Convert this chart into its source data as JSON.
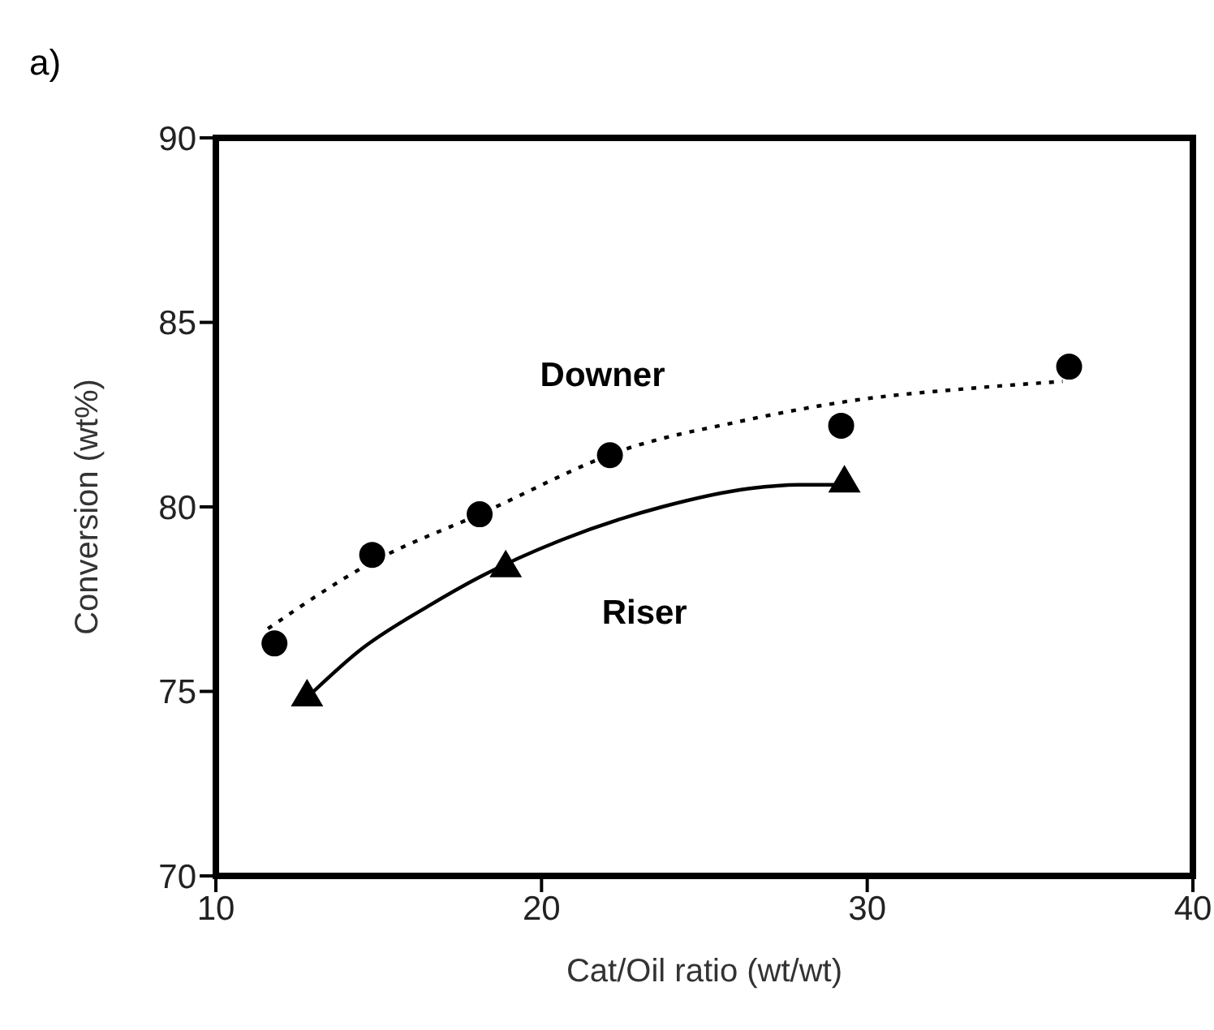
{
  "chart_data": {
    "type": "scatter",
    "title": "a)",
    "xlabel": "Cat/Oil ratio (wt/wt)",
    "ylabel": "Conversion  (wt%)",
    "xlim": [
      10,
      40
    ],
    "xticks": [
      10,
      20,
      30,
      40
    ],
    "ylim": [
      70,
      90
    ],
    "yticks": [
      70,
      75,
      80,
      85,
      90
    ],
    "series": [
      {
        "name": "Downer",
        "marker": "circle",
        "color": "#000000",
        "x": [
          11.8,
          14.8,
          18.1,
          22.1,
          29.2,
          36.2
        ],
        "values": [
          76.3,
          78.7,
          79.8,
          81.4,
          82.2,
          83.8
        ]
      },
      {
        "type": "line",
        "marker": "none",
        "line_style": "dotted",
        "color": "#000000",
        "x": [
          11.6,
          14.8,
          18.1,
          22.7,
          26.0,
          29.7,
          33.0,
          36.0
        ],
        "values": [
          76.7,
          78.5,
          79.8,
          81.6,
          82.3,
          82.9,
          83.2,
          83.4
        ]
      },
      {
        "name": "Riser",
        "marker": "triangle",
        "color": "#000000",
        "x": [
          12.8,
          18.9,
          29.3
        ],
        "values": [
          74.9,
          78.4,
          80.7
        ]
      },
      {
        "type": "line",
        "marker": "none",
        "line_style": "solid",
        "color": "#000000",
        "x": [
          13.0,
          14.4,
          16.5,
          18.1,
          20.6,
          23.7,
          26.4,
          27.9,
          29.5
        ],
        "values": [
          75.0,
          76.1,
          77.3,
          78.1,
          79.1,
          80.0,
          80.5,
          80.6,
          80.6
        ]
      }
    ]
  }
}
